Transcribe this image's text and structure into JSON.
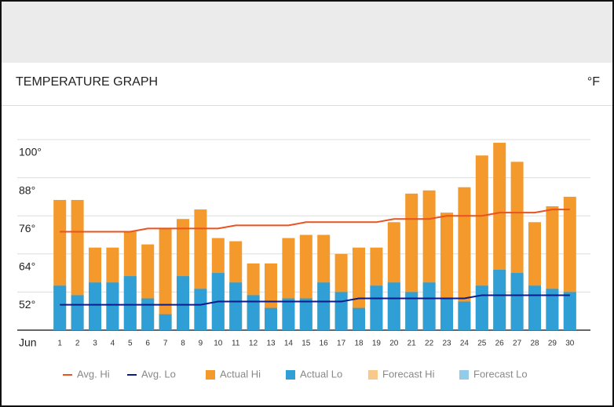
{
  "header": {
    "title": "TEMPERATURE GRAPH",
    "unit": "°F"
  },
  "chart_data": {
    "type": "bar",
    "x_label": "Jun",
    "categories": [
      "1",
      "2",
      "3",
      "4",
      "5",
      "6",
      "7",
      "8",
      "9",
      "10",
      "11",
      "12",
      "13",
      "14",
      "15",
      "16",
      "17",
      "18",
      "19",
      "20",
      "21",
      "22",
      "23",
      "24",
      "25",
      "26",
      "27",
      "28",
      "29",
      "30"
    ],
    "ylim": [
      40,
      100
    ],
    "yticks": [
      {
        "value": 52,
        "label": "52°"
      },
      {
        "value": 64,
        "label": "64°"
      },
      {
        "value": 76,
        "label": "76°"
      },
      {
        "value": 88,
        "label": "88°"
      },
      {
        "value": 100,
        "label": "100°"
      }
    ],
    "grid": true,
    "series": [
      {
        "name": "Avg. Hi",
        "type": "line",
        "color": "#e8531f",
        "values": [
          71,
          71,
          71,
          71,
          71,
          72,
          72,
          72,
          72,
          72,
          73,
          73,
          73,
          73,
          74,
          74,
          74,
          74,
          74,
          75,
          75,
          75,
          76,
          76,
          76,
          77,
          77,
          77,
          78,
          78
        ]
      },
      {
        "name": "Avg. Lo",
        "type": "line",
        "color": "#0d1a8a",
        "values": [
          48,
          48,
          48,
          48,
          48,
          48,
          48,
          48,
          48,
          49,
          49,
          49,
          49,
          49,
          49,
          49,
          49,
          50,
          50,
          50,
          50,
          50,
          50,
          50,
          51,
          51,
          51,
          51,
          51,
          51
        ]
      },
      {
        "name": "Actual Hi",
        "type": "bar",
        "color": "#f4992b",
        "values": [
          81,
          81,
          66,
          66,
          71,
          67,
          72,
          75,
          78,
          69,
          68,
          61,
          61,
          69,
          70,
          70,
          64,
          66,
          66,
          74,
          83,
          84,
          77,
          85,
          95,
          99,
          93,
          74,
          79,
          82
        ]
      },
      {
        "name": "Actual Lo",
        "type": "bar",
        "color": "#2f9fd6",
        "values": [
          54,
          51,
          55,
          55,
          57,
          50,
          45,
          57,
          53,
          58,
          55,
          51,
          47,
          50,
          50,
          55,
          52,
          47,
          54,
          55,
          52,
          55,
          50,
          49,
          54,
          59,
          58,
          54,
          53,
          52
        ]
      },
      {
        "name": "Forecast Hi",
        "type": "bar",
        "color": "#f9c98c",
        "values": [
          null,
          null,
          null,
          null,
          null,
          null,
          null,
          null,
          null,
          null,
          null,
          null,
          null,
          null,
          null,
          null,
          null,
          null,
          null,
          null,
          null,
          null,
          null,
          null,
          null,
          null,
          null,
          null,
          null,
          null
        ]
      },
      {
        "name": "Forecast Lo",
        "type": "bar",
        "color": "#93cbe9",
        "values": [
          null,
          null,
          null,
          null,
          null,
          null,
          null,
          null,
          null,
          null,
          null,
          null,
          null,
          null,
          null,
          null,
          null,
          null,
          null,
          null,
          null,
          null,
          null,
          null,
          null,
          null,
          null,
          null,
          null,
          null
        ]
      }
    ]
  }
}
